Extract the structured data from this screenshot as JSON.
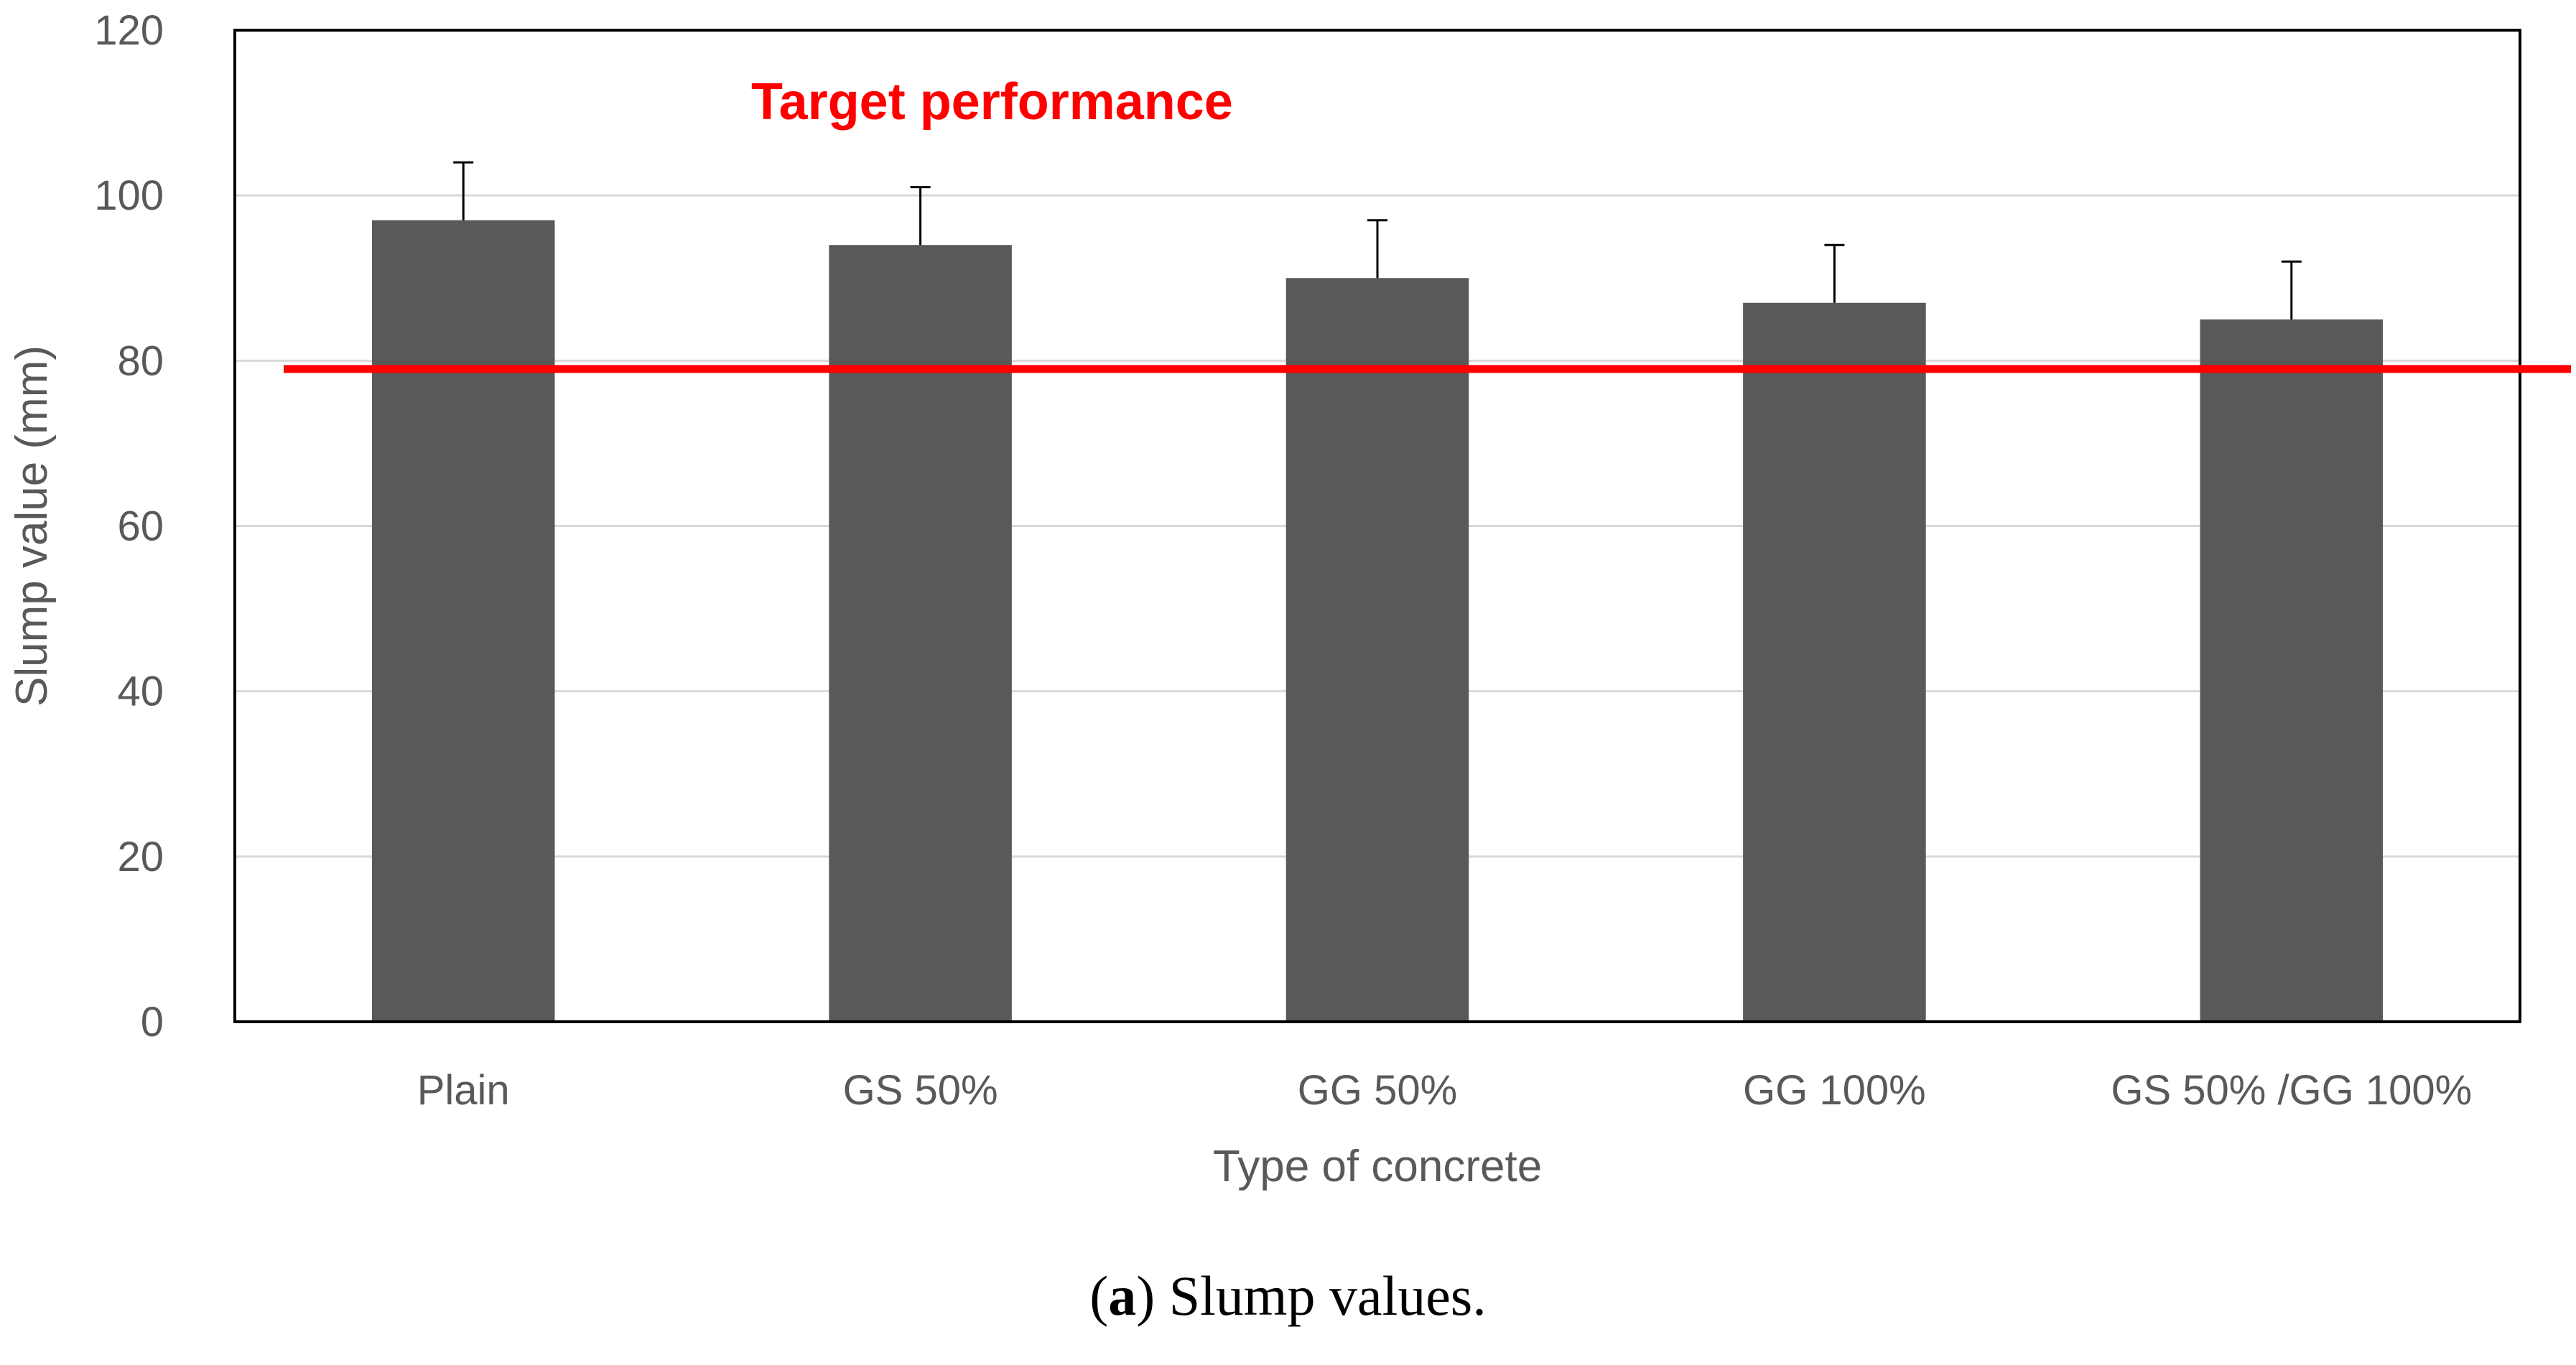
{
  "chart_data": {
    "type": "bar",
    "title": "",
    "xlabel": "Type of concrete",
    "ylabel": "Slump value (mm)",
    "ylim": [
      0,
      120
    ],
    "yticks": [
      0,
      20,
      40,
      60,
      80,
      100,
      120
    ],
    "categories": [
      "Plain",
      "GS 50%",
      "GG 50%",
      "GG 100%",
      "GS 50% /GG 100%"
    ],
    "series": [
      {
        "values": [
          97,
          94,
          90,
          87,
          85
        ],
        "error_plus": [
          7,
          7,
          7,
          7,
          7
        ],
        "color": "#595959"
      }
    ],
    "reference_line": {
      "label": "Target performance",
      "value": 79,
      "color": "#ff0000"
    },
    "grid": true,
    "legend": "none"
  },
  "caption": {
    "letter": "a",
    "text": "Slump values."
  }
}
